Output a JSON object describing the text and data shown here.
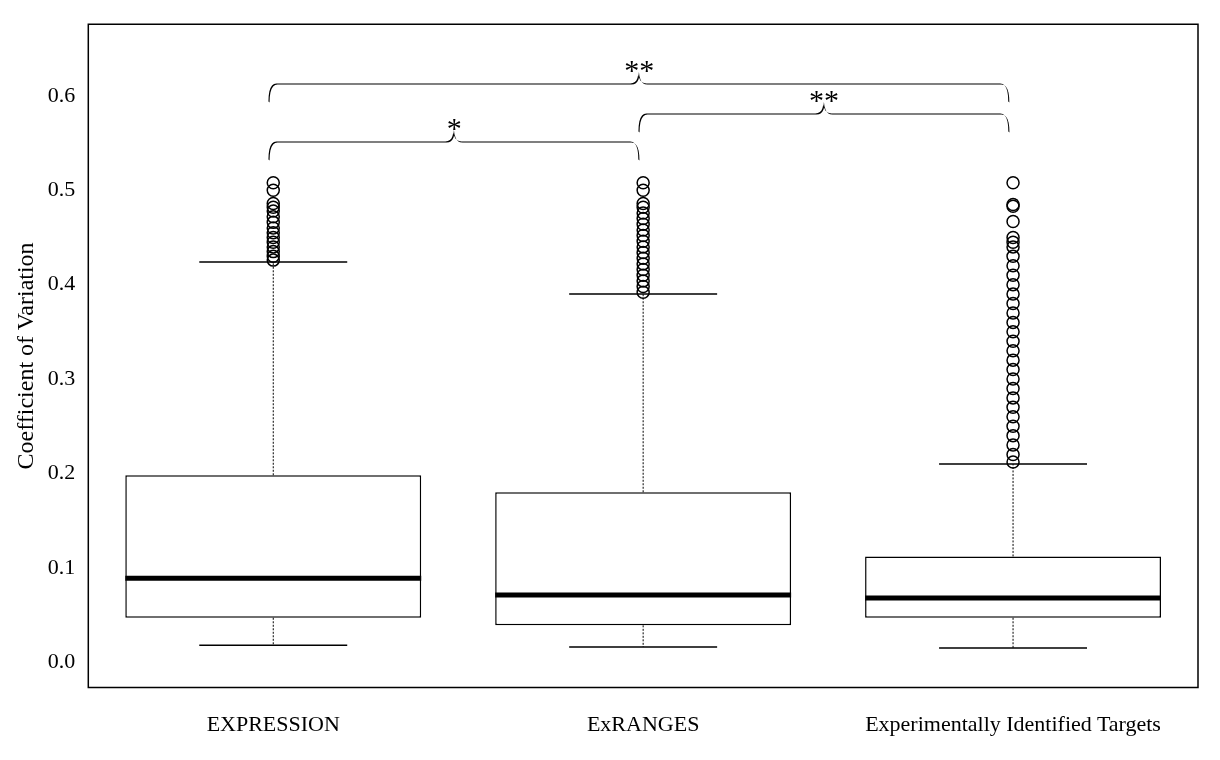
{
  "chart_data": {
    "type": "box",
    "ylabel": "Coefficient of Variation",
    "categories": [
      "EXPRESSION",
      "ExRANGES",
      "Experimentally Identified Targets"
    ],
    "boxes": [
      {
        "low": 0.018,
        "q1": 0.047,
        "median": 0.089,
        "q3": 0.198,
        "high": 0.424,
        "outliers": [
          0.508,
          0.5,
          0.486,
          0.482,
          0.478,
          0.472,
          0.466,
          0.46,
          0.455,
          0.45,
          0.445,
          0.44,
          0.435,
          0.43,
          0.426
        ]
      },
      {
        "low": 0.016,
        "q1": 0.039,
        "median": 0.071,
        "q3": 0.18,
        "high": 0.39,
        "outliers": [
          0.508,
          0.5,
          0.486,
          0.482,
          0.476,
          0.47,
          0.464,
          0.458,
          0.452,
          0.446,
          0.44,
          0.434,
          0.428,
          0.422,
          0.416,
          0.41,
          0.404,
          0.398,
          0.392
        ]
      },
      {
        "low": 0.015,
        "q1": 0.047,
        "median": 0.068,
        "q3": 0.112,
        "high": 0.21,
        "outliers": [
          0.508,
          0.485,
          0.483,
          0.467,
          0.45,
          0.445,
          0.44,
          0.43,
          0.42,
          0.41,
          0.4,
          0.39,
          0.38,
          0.37,
          0.36,
          0.35,
          0.34,
          0.33,
          0.32,
          0.31,
          0.3,
          0.29,
          0.28,
          0.27,
          0.26,
          0.25,
          0.24,
          0.23,
          0.22,
          0.212
        ]
      }
    ],
    "ylim": [
      -0.027,
      0.676
    ],
    "yticks": [
      {
        "value": 0,
        "label": "0.0"
      },
      {
        "value": 0.1,
        "label": "0.1"
      },
      {
        "value": 0.2,
        "label": "0.2"
      },
      {
        "value": 0.3,
        "label": "0.3"
      },
      {
        "value": 0.4,
        "label": "0.4"
      },
      {
        "value": 0.5,
        "label": "0.5"
      },
      {
        "value": 0.6,
        "label": "0.6"
      }
    ],
    "marker": "circle",
    "annotations": [
      "*",
      "**",
      "**"
    ]
  }
}
